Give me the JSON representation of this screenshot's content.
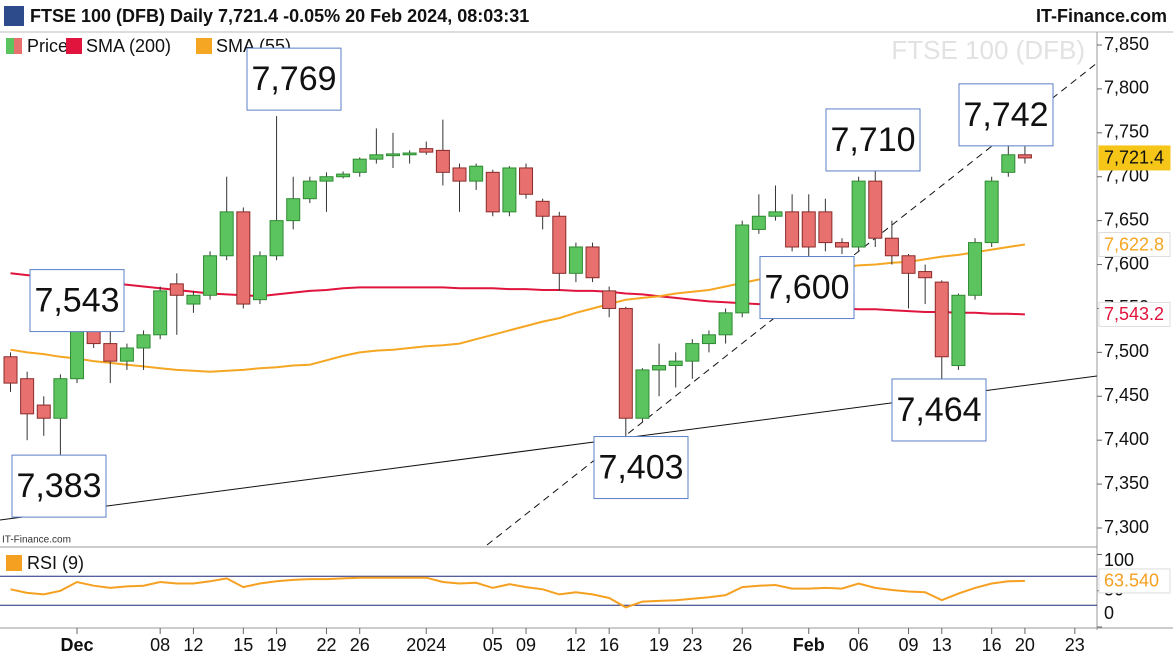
{
  "header": {
    "title": "FTSE 100 (DFB) Daily 7,721.4 -0.05% 20 Feb 2024, 08:03:31",
    "brand": "IT-Finance.com"
  },
  "chart_data": [
    {
      "type": "candlestick",
      "watermark": "FTSE 100 (DFB)",
      "credit": "IT-Finance.com",
      "categories": [
        null,
        null,
        null,
        null,
        "Dec",
        null,
        null,
        null,
        null,
        "08",
        null,
        "12",
        null,
        null,
        "15",
        null,
        "19",
        null,
        null,
        "22",
        null,
        "26",
        null,
        null,
        null,
        "2024",
        null,
        null,
        null,
        "05",
        null,
        "09",
        null,
        null,
        "12",
        null,
        "16",
        null,
        null,
        "19",
        null,
        "23",
        null,
        null,
        "26",
        null,
        null,
        null,
        "Feb",
        null,
        null,
        "06",
        null,
        null,
        "09",
        null,
        "13",
        null,
        null,
        "16",
        null,
        "20",
        null,
        null,
        "23"
      ],
      "series": [
        {
          "name": "Price",
          "up_color": "#5cc45e",
          "down_color": "#e8716f",
          "last_label": "7,721.4",
          "open": [
            7495,
            7470,
            7440,
            7425,
            7470,
            7535,
            7510,
            7490,
            7505,
            7520,
            7578,
            7555,
            7565,
            7610,
            7660,
            7560,
            7610,
            7650,
            7675,
            7695,
            7700,
            7705,
            7720,
            7724,
            7725,
            7732,
            7730,
            7710,
            7695,
            7705,
            7660,
            7710,
            7672,
            7655,
            7590,
            7620,
            7570,
            7550,
            7425,
            7480,
            7485,
            7490,
            7510,
            7520,
            7545,
            7640,
            7655,
            7660,
            7660,
            7660,
            7625,
            7620,
            7695,
            7630,
            7610,
            7592,
            7580,
            7485,
            7565,
            7625,
            7705,
            7725,
            null,
            null,
            null
          ],
          "high": [
            7500,
            7478,
            7450,
            7475,
            7543,
            7545,
            7525,
            7510,
            7525,
            7575,
            7590,
            7570,
            7615,
            7700,
            7665,
            7615,
            7769,
            7700,
            7700,
            7705,
            7706,
            7722,
            7755,
            7750,
            7730,
            7740,
            7765,
            7715,
            7715,
            7708,
            7712,
            7715,
            7675,
            7660,
            7625,
            7625,
            7575,
            7552,
            7482,
            7510,
            7500,
            7515,
            7525,
            7550,
            7650,
            7680,
            7690,
            7680,
            7680,
            7675,
            7630,
            7700,
            7710,
            7650,
            7612,
            7600,
            7582,
            7567,
            7630,
            7700,
            7742,
            7735,
            null,
            null,
            null
          ],
          "low": [
            7455,
            7400,
            7405,
            7383,
            7465,
            7505,
            7465,
            7480,
            7480,
            7515,
            7520,
            7545,
            7560,
            7605,
            7550,
            7555,
            7605,
            7640,
            7670,
            7660,
            7698,
            7700,
            7715,
            7710,
            7715,
            7725,
            7690,
            7660,
            7685,
            7655,
            7655,
            7675,
            7640,
            7570,
            7580,
            7580,
            7540,
            7403,
            7420,
            7450,
            7460,
            7470,
            7500,
            7510,
            7540,
            7635,
            7650,
            7615,
            7600,
            7615,
            7612,
            7615,
            7620,
            7600,
            7550,
            7555,
            7464,
            7480,
            7560,
            7620,
            7700,
            7715,
            null,
            null,
            null
          ],
          "close": [
            7465,
            7430,
            7425,
            7470,
            7535,
            7510,
            7490,
            7505,
            7520,
            7570,
            7565,
            7565,
            7610,
            7660,
            7555,
            7610,
            7650,
            7675,
            7695,
            7700,
            7703,
            7720,
            7725,
            7726,
            7727,
            7728,
            7705,
            7695,
            7712,
            7660,
            7710,
            7680,
            7655,
            7590,
            7620,
            7585,
            7550,
            7425,
            7480,
            7485,
            7490,
            7510,
            7520,
            7545,
            7645,
            7655,
            7660,
            7620,
            7620,
            7625,
            7620,
            7695,
            7630,
            7610,
            7590,
            7585,
            7495,
            7565,
            7625,
            7695,
            7725,
            7721.4,
            null,
            null,
            null
          ]
        },
        {
          "name": "SMA (200)",
          "color": "#e0143c",
          "last_label": "7,543.2",
          "values": [
            7590,
            7588,
            7586,
            7584,
            7583,
            7581,
            7579,
            7577,
            7575,
            7573,
            7571,
            7569,
            7567,
            7566,
            7565,
            7564,
            7566,
            7568,
            7570,
            7571,
            7573,
            7574,
            7574,
            7574,
            7574,
            7574,
            7574,
            7573,
            7573,
            7573,
            7572,
            7572,
            7571,
            7571,
            7570,
            7570,
            7569,
            7567,
            7566,
            7564,
            7562,
            7560,
            7558,
            7557,
            7556,
            7555,
            7554,
            7553,
            7552,
            7551,
            7550,
            7549,
            7549,
            7548,
            7547,
            7546,
            7546,
            7545,
            7545,
            7544,
            7544,
            7543.2,
            null,
            null,
            null
          ]
        },
        {
          "name": "SMA (55)",
          "color": "#f5a623",
          "last_label": "7,622.8",
          "values": [
            7503,
            7500,
            7498,
            7495,
            7493,
            7490,
            7488,
            7486,
            7484,
            7482,
            7480,
            7479,
            7478,
            7479,
            7480,
            7482,
            7483,
            7485,
            7486,
            7491,
            7496,
            7500,
            7502,
            7503,
            7505,
            7507,
            7508,
            7510,
            7515,
            7520,
            7525,
            7530,
            7535,
            7539,
            7545,
            7550,
            7555,
            7560,
            7562,
            7564,
            7567,
            7569,
            7571,
            7575,
            7579,
            7583,
            7587,
            7591,
            7594,
            7596,
            7597,
            7599,
            7600,
            7602,
            7603,
            7606,
            7609,
            7611,
            7614,
            7617,
            7620,
            7622.8,
            null,
            null,
            null
          ]
        }
      ],
      "annotations": [
        {
          "value": 7769,
          "label": "7,769"
        },
        {
          "value": 7543,
          "label": "7,543"
        },
        {
          "value": 7383,
          "label": "7,383"
        },
        {
          "value": 7403,
          "label": "7,403"
        },
        {
          "value": 7600,
          "label": "7,600"
        },
        {
          "value": 7710,
          "label": "7,710"
        },
        {
          "value": 7742,
          "label": "7,742"
        },
        {
          "value": 7464,
          "label": "7,464"
        }
      ],
      "ylim": [
        7282,
        7850
      ],
      "yticks": [
        {
          "value": 7300,
          "label": "7,300"
        },
        {
          "value": 7350,
          "label": "7,350"
        },
        {
          "value": 7400,
          "label": "7,400"
        },
        {
          "value": 7450,
          "label": "7,450"
        },
        {
          "value": 7500,
          "label": "7,500"
        },
        {
          "value": 7550,
          "label": "7,550"
        },
        {
          "value": 7600,
          "label": "7,600"
        },
        {
          "value": 7650,
          "label": "7,650"
        },
        {
          "value": 7700,
          "label": "7,700"
        },
        {
          "value": 7750,
          "label": "7,750"
        },
        {
          "value": 7800,
          "label": "7,800"
        },
        {
          "value": 7850,
          "label": "7,850"
        }
      ]
    },
    {
      "type": "line",
      "series": [
        {
          "name": "RSI (9)",
          "color": "#f5a020",
          "last_label": "63.540",
          "values": [
            52,
            47,
            45,
            50,
            62,
            57,
            54,
            56,
            57,
            62,
            60,
            60,
            63,
            67,
            55,
            60,
            63,
            65,
            66,
            66,
            67,
            68,
            68,
            68,
            68,
            68,
            62,
            60,
            61,
            54,
            59,
            55,
            52,
            45,
            48,
            45,
            40,
            27,
            35,
            36,
            37,
            39,
            41,
            44,
            55,
            57,
            58,
            53,
            53,
            54,
            53,
            60,
            54,
            51,
            49,
            48,
            37,
            46,
            54,
            60,
            63,
            63.54,
            null,
            null,
            null
          ]
        }
      ],
      "levels": [
        70,
        30
      ],
      "ylim": [
        0,
        100
      ],
      "yticks": [
        0,
        50,
        100
      ]
    }
  ]
}
